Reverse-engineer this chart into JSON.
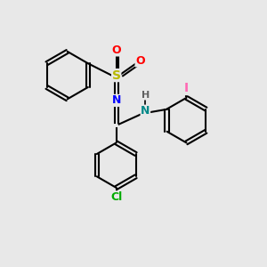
{
  "bg_color": "#e8e8e8",
  "bond_color": "#000000",
  "bond_width": 1.5,
  "figsize": [
    3.0,
    3.0
  ],
  "dpi": 100,
  "colors": {
    "S": "#b8b800",
    "O": "#ff0000",
    "N_imine": "#0000ff",
    "N_amine": "#008888",
    "Cl": "#00aa00",
    "I": "#ff69b4",
    "C": "#000000",
    "H": "#606060"
  },
  "font_size": 9,
  "font_size_small": 7.5
}
